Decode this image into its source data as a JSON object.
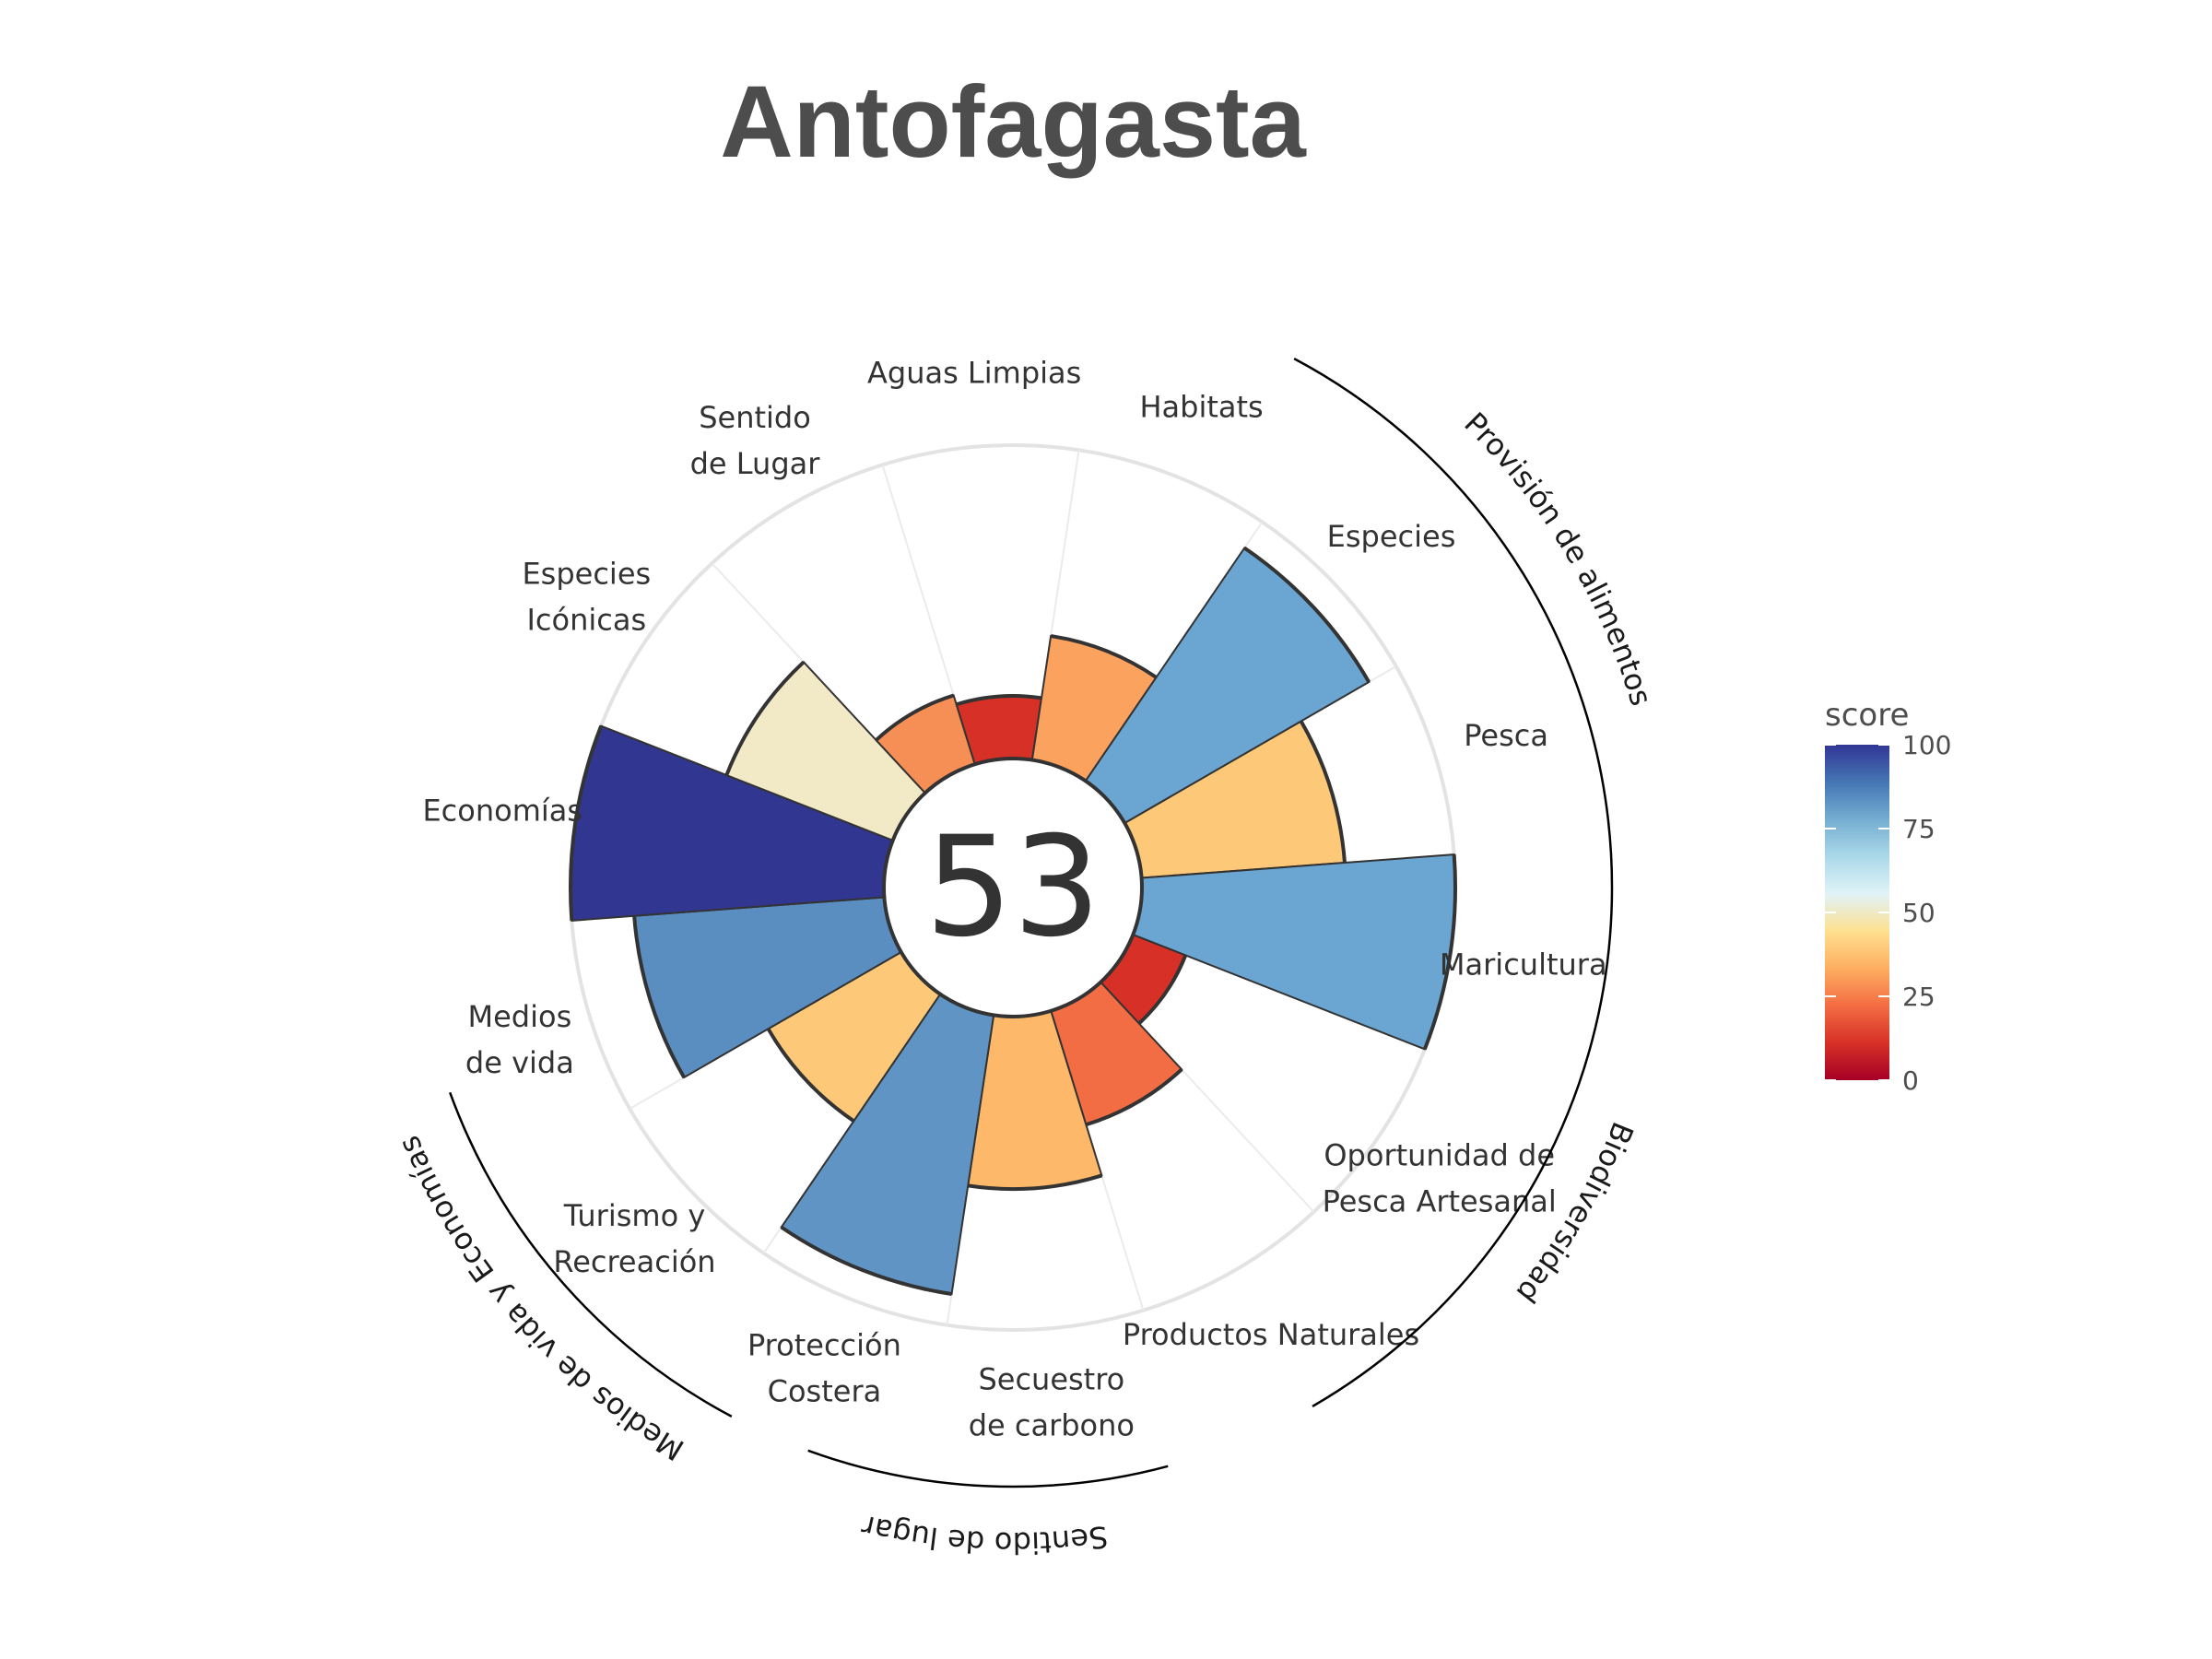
{
  "chart_data": {
    "type": "polar-bar",
    "title": "Antofagasta",
    "overall_score": "53",
    "ylim": [
      0,
      100
    ],
    "grid": true,
    "goals": [
      {
        "name": "Pesca",
        "label": [
          "Pesca"
        ],
        "value": 65,
        "color": "#fdc877"
      },
      {
        "name": "Maricultura",
        "label": [
          "Maricultura"
        ],
        "value": 100,
        "color": "#6aa6d1"
      },
      {
        "name": "Oportunidad de Pesca Artesanal",
        "label": [
          "Oportunidad de",
          "Pesca Artesanal"
        ],
        "value": 18,
        "color": "#d73027"
      },
      {
        "name": "Productos Naturales",
        "label": [
          "Productos Naturales"
        ],
        "value": 38,
        "color": "#f26d43"
      },
      {
        "name": "Secuestro de carbono",
        "label": [
          "Secuestro",
          "de carbono"
        ],
        "value": 55,
        "color": "#fdb86a"
      },
      {
        "name": "Protección Costera",
        "label": [
          "Protección",
          "Costera"
        ],
        "value": 90,
        "color": "#6094c4"
      },
      {
        "name": "Turismo y Recreación",
        "label": [
          "Turismo y",
          "Recreación"
        ],
        "value": 49,
        "color": "#fdc877"
      },
      {
        "name": "Medios de vida",
        "label": [
          "Medios",
          "de vida"
        ],
        "value": 80,
        "color": "#5a8ec1"
      },
      {
        "name": "Economías",
        "label": [
          "Economías"
        ],
        "value": 100,
        "color": "#313691"
      },
      {
        "name": "Especies Icónicas",
        "label": [
          "Especies",
          "Icónicas"
        ],
        "value": 57,
        "color": "#f2e9c7"
      },
      {
        "name": "Sentido de Lugar",
        "label": [
          "Sentido",
          "de Lugar"
        ],
        "value": 23,
        "color": "#f68f55"
      },
      {
        "name": "Aguas Limpias",
        "label": [
          "Aguas Limpias"
        ],
        "value": 20,
        "color": "#d73027"
      },
      {
        "name": "Habitats",
        "label": [
          "Habitats"
        ],
        "value": 40,
        "color": "#fba25f"
      },
      {
        "name": "Especies",
        "label": [
          "Especies"
        ],
        "value": 90,
        "color": "#6aa6d1"
      }
    ],
    "groups": [
      {
        "name": "Provisión de alimentos"
      },
      {
        "name": "Biodiversidad"
      },
      {
        "name": "Sentido de lugar"
      },
      {
        "name": "Medios de vida y Economías"
      }
    ],
    "legend": {
      "title": "score",
      "ticks": [
        "0",
        "25",
        "50",
        "75",
        "100"
      ],
      "colors": [
        "#a50026",
        "#d73027",
        "#f46d43",
        "#fdae61",
        "#fee090",
        "#e0f3f8",
        "#abd9e9",
        "#74add1",
        "#4575b4",
        "#313695"
      ]
    }
  }
}
